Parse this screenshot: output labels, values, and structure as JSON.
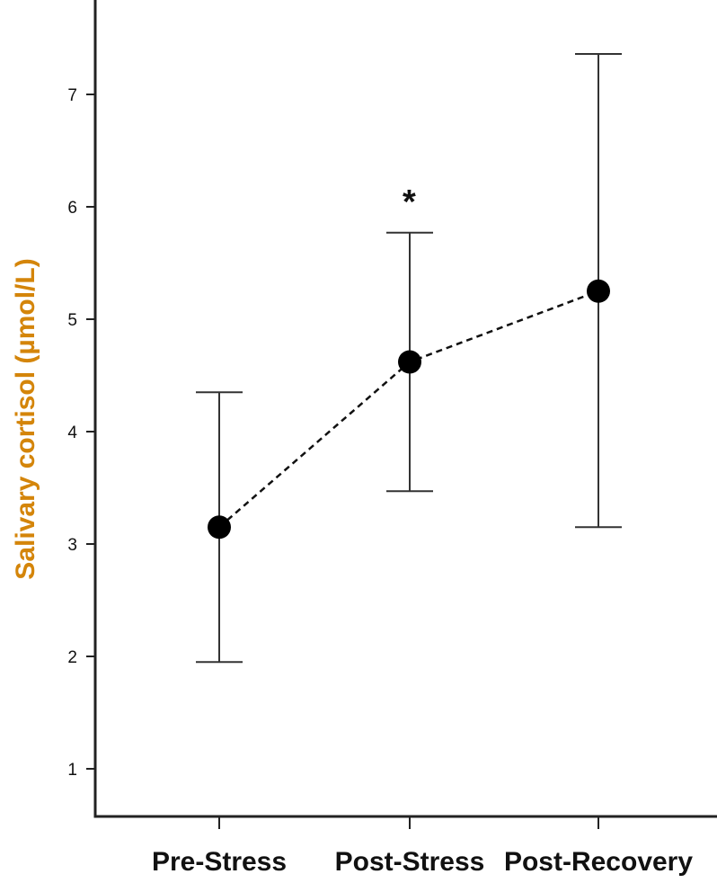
{
  "chart_data": {
    "type": "line",
    "categories": [
      "Pre-Stress",
      "Post-Stress",
      "Post-Recovery"
    ],
    "series": [
      {
        "values": [
          3.15,
          4.62,
          5.25
        ],
        "error_low": [
          1.95,
          3.47,
          3.15
        ],
        "error_high": [
          4.35,
          5.77,
          7.36
        ]
      }
    ],
    "ylabel": "Salivary cortisol (µmol/L)",
    "ylabel_color": "#d4850a",
    "yticks": [
      1,
      2,
      3,
      4,
      5,
      6,
      7
    ],
    "ylim": [
      0.6,
      7.85
    ],
    "line_style": "dashed",
    "marker": "filled-circle",
    "annotations": [
      {
        "category": "Post-Stress",
        "text": "*"
      }
    ],
    "grid": false,
    "legend": "none"
  }
}
